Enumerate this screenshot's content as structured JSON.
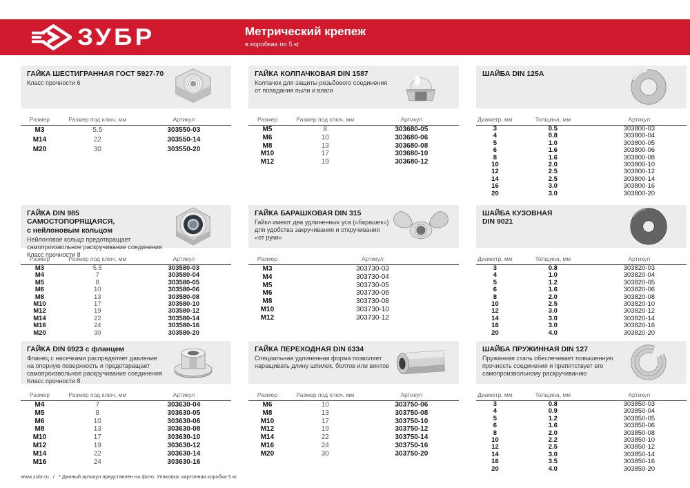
{
  "header": {
    "brand": "ЗУБР",
    "title": "Метрический крепеж",
    "subtitle": "в коробках по 5 кг"
  },
  "colors": {
    "brand_red": "#d11a2d",
    "panel_grey": "#ececec"
  },
  "footer": {
    "site": "www.zubr.ru",
    "separator": "/",
    "note": "* Данный артикул представлен на фото. Упаковка: картонная коробка 5 кг."
  },
  "sections": [
    {
      "title": "ГАЙКА ШЕСТИГРАННАЯ ГОСТ 5927-70",
      "description": [
        "Класс прочности 6"
      ],
      "photo": "hex-nut",
      "headers": [
        "Размер",
        "Размер под ключ, мм",
        "Артикул"
      ],
      "bold_cols": [
        0,
        2
      ],
      "rows": [
        [
          "М3",
          "5.5",
          "303550-03"
        ],
        [
          "М14",
          "22",
          "303550-14"
        ],
        [
          "М20",
          "30",
          "303550-20"
        ]
      ]
    },
    {
      "title": "ГАЙКА КОЛПАЧКОВАЯ DIN 1587",
      "description": [
        "Колпачок для защиты резьбового соединения от попадания пыли и влаги"
      ],
      "photo": "cap-nut",
      "headers": [
        "Размер",
        "Размер под ключ, мм",
        "Артикул"
      ],
      "bold_cols": [
        0,
        2
      ],
      "rows": [
        [
          "М5",
          "8",
          "303680-05"
        ],
        [
          "М6",
          "10",
          "303680-06"
        ],
        [
          "М8",
          "13",
          "303680-08"
        ],
        [
          "М10",
          "17",
          "303680-10"
        ],
        [
          "М12",
          "19",
          "303680-12"
        ]
      ]
    },
    {
      "title": "ШАЙБА DIN 125A",
      "description": [],
      "photo": "flat-washer",
      "headers": [
        "Диаметр, мм",
        "Толщина, мм",
        "Артикул"
      ],
      "bold_cols": [
        0,
        1
      ],
      "rows": [
        [
          "3",
          "0.5",
          "303800-03"
        ],
        [
          "4",
          "0.8",
          "303800-04"
        ],
        [
          "5",
          "1.0",
          "303800-05"
        ],
        [
          "6",
          "1.6",
          "303800-06"
        ],
        [
          "8",
          "1.6",
          "303800-08"
        ],
        [
          "10",
          "2.0",
          "303800-10"
        ],
        [
          "12",
          "2.5",
          "303800-12"
        ],
        [
          "14",
          "2.5",
          "303800-14"
        ],
        [
          "16",
          "3.0",
          "303800-16"
        ],
        [
          "20",
          "3.0",
          "303800-20"
        ]
      ]
    },
    {
      "title": "ГАЙКА DIN 985 САМОСТОПОРЯЩАЯСЯ,\nс нейлоновым кольцом",
      "description": [
        "Нейлоновое кольцо предотвращает самопроизвольное раскручивание соединения",
        "Класс прочности 8"
      ],
      "photo": "lock-nut",
      "headers": [
        "Размер",
        "Размер под ключ, мм",
        "Артикул"
      ],
      "bold_cols": [
        0,
        2
      ],
      "rows": [
        [
          "М3",
          "5.5",
          "303580-03"
        ],
        [
          "М4",
          "7",
          "303580-04"
        ],
        [
          "М5",
          "8",
          "303580-05"
        ],
        [
          "М6",
          "10",
          "303580-06"
        ],
        [
          "М8",
          "13",
          "303580-08"
        ],
        [
          "М10",
          "17",
          "303580-10"
        ],
        [
          "М12",
          "19",
          "303580-12"
        ],
        [
          "М14",
          "22",
          "303580-14"
        ],
        [
          "М16",
          "24",
          "303580-16"
        ],
        [
          "М20",
          "30",
          "303580-20"
        ]
      ]
    },
    {
      "title": "ГАЙКА БАРАШКОВАЯ DIN 315",
      "description": [
        "Гайки имеют два удлиненных уса («барашек») для удобства закручивания и откручивания «от руки»"
      ],
      "photo": "wing-nut",
      "headers": [
        "Размер",
        "Артикул"
      ],
      "bold_cols": [
        0
      ],
      "rows": [
        [
          "М3",
          "303730-03"
        ],
        [
          "М4",
          "303730-04"
        ],
        [
          "М5",
          "303730-05"
        ],
        [
          "М6",
          "303730-06"
        ],
        [
          "М8",
          "303730-08"
        ],
        [
          "М10",
          "303730-10"
        ],
        [
          "М12",
          "303730-12"
        ]
      ]
    },
    {
      "title": "ШАЙБА КУЗОВНАЯ\nDIN 9021",
      "description": [],
      "photo": "fender-washer",
      "headers": [
        "Диаметр, мм",
        "Толщина, мм",
        "Артикул"
      ],
      "bold_cols": [
        0,
        1
      ],
      "rows": [
        [
          "3",
          "0.8",
          "303820-03"
        ],
        [
          "4",
          "1.0",
          "303820-04"
        ],
        [
          "5",
          "1.2",
          "303820-05"
        ],
        [
          "6",
          "1.6",
          "303820-06"
        ],
        [
          "8",
          "2.0",
          "303820-08"
        ],
        [
          "10",
          "2.5",
          "303820-10"
        ],
        [
          "12",
          "3.0",
          "303820-12"
        ],
        [
          "14",
          "3.0",
          "303820-14"
        ],
        [
          "16",
          "3.0",
          "303820-16"
        ],
        [
          "20",
          "4.0",
          "303820-20"
        ]
      ]
    },
    {
      "title": "ГАЙКА DIN 6923 с фланцем",
      "description": [
        "Фланец с насечками распределяет давление на опорную поверхность и предотвращает самопроизвольное раскручивание соединения",
        "Класс прочности 8"
      ],
      "photo": "flange-nut",
      "headers": [
        "Размер",
        "Размер под ключ, мм",
        "Артикул"
      ],
      "bold_cols": [
        0,
        2
      ],
      "rows": [
        [
          "М4",
          "7",
          "303630-04"
        ],
        [
          "М5",
          "8",
          "303630-05"
        ],
        [
          "М6",
          "10",
          "303630-06"
        ],
        [
          "М8",
          "13",
          "303630-08"
        ],
        [
          "М10",
          "17",
          "303630-10"
        ],
        [
          "М12",
          "19",
          "303630-12"
        ],
        [
          "М14",
          "22",
          "303630-14"
        ],
        [
          "М16",
          "24",
          "303630-16"
        ]
      ]
    },
    {
      "title": "ГАЙКА ПЕРЕХОДНАЯ DIN 6334",
      "description": [
        "Специальная удлиненная форма позволяет наращивать длину шпилек, болтов или винтов"
      ],
      "photo": "coupling-nut",
      "headers": [
        "Размер",
        "Размер под ключ, мм",
        "Артикул"
      ],
      "bold_cols": [
        0,
        2
      ],
      "rows": [
        [
          "М6",
          "10",
          "303750-06"
        ],
        [
          "М8",
          "13",
          "303750-08"
        ],
        [
          "М10",
          "17",
          "303750-10"
        ],
        [
          "М12",
          "19",
          "303750-12"
        ],
        [
          "М14",
          "22",
          "303750-14"
        ],
        [
          "М16",
          "24",
          "303750-16"
        ],
        [
          "М20",
          "30",
          "303750-20"
        ]
      ]
    },
    {
      "title": "ШАЙБА ПРУЖИННАЯ DIN 127",
      "description": [
        "Пружинная сталь обеспечивает повышенную прочность соединения и препятствует его самопроизвольному раскручиванию"
      ],
      "photo": "spring-washer",
      "headers": [
        "Диаметр, мм",
        "Толщина, мм",
        "Артикул"
      ],
      "bold_cols": [
        0,
        1
      ],
      "rows": [
        [
          "3",
          "0.8",
          "303850-03"
        ],
        [
          "4",
          "0.9",
          "303850-04"
        ],
        [
          "5",
          "1.2",
          "303850-05"
        ],
        [
          "6",
          "1.6",
          "303850-06"
        ],
        [
          "8",
          "2.0",
          "303850-08"
        ],
        [
          "10",
          "2.2",
          "303850-10"
        ],
        [
          "12",
          "2.5",
          "303850-12"
        ],
        [
          "14",
          "3.0",
          "303850-14"
        ],
        [
          "16",
          "3.5",
          "303850-16"
        ],
        [
          "20",
          "4.0",
          "303850-20"
        ]
      ]
    }
  ]
}
